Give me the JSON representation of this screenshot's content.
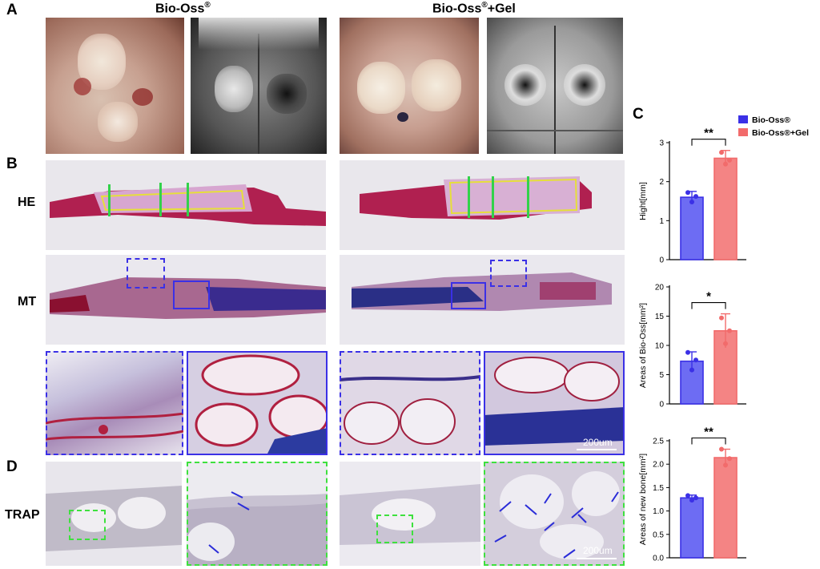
{
  "figure": {
    "panel_labels": {
      "a": "A",
      "b": "B",
      "c": "C",
      "d": "D"
    },
    "group_titles": {
      "left": "Bio-Oss",
      "left_sup": "®",
      "right_main": "Bio-Oss",
      "right_sup": "®",
      "right_suffix": "+Gel"
    },
    "row_labels": {
      "he": "HE",
      "mt": "MT",
      "trap": "TRAP"
    },
    "scale_bar_text": "200um",
    "colors": {
      "bio_oss": "#3b30e6",
      "bio_oss_gel": "#f26b6b",
      "bio_oss_fill": "#6d6cf3",
      "gel_fill": "#f48484",
      "zoom_blue": "#3b30e6",
      "zoom_green": "#3ee03e",
      "measure_green": "#32d24a",
      "outline_yellow": "#e6df3a"
    }
  },
  "chart_data": [
    {
      "type": "bar",
      "categories": [
        "Bio-Oss®",
        "Bio-Oss®+Gel"
      ],
      "values": [
        1.6,
        2.6
      ],
      "errors": [
        0.15,
        0.2
      ],
      "points": [
        [
          1.72,
          1.62,
          1.48
        ],
        [
          2.75,
          2.55,
          2.45
        ]
      ],
      "ylabel": "Hight[mm]",
      "ylim": [
        0,
        3
      ],
      "yticks": [
        0,
        1,
        2,
        3
      ],
      "significance": "**",
      "legend": [
        {
          "label": "Bio-Oss®",
          "color": "#3b30e6"
        },
        {
          "label": "Bio-Oss®+Gel",
          "color": "#f26b6b"
        }
      ]
    },
    {
      "type": "bar",
      "categories": [
        "Bio-Oss®",
        "Bio-Oss®+Gel"
      ],
      "values": [
        7.3,
        12.5
      ],
      "errors": [
        1.6,
        2.9
      ],
      "points": [
        [
          8.8,
          7.5,
          5.8
        ],
        [
          14.7,
          12.5,
          10.3
        ]
      ],
      "ylabel": "Areas of Bio-Oss[mm²]",
      "ylim": [
        0,
        20
      ],
      "yticks": [
        0,
        5,
        10,
        15,
        20
      ],
      "significance": "*"
    },
    {
      "type": "bar",
      "categories": [
        "Bio-Oss®",
        "Bio-Oss®+Gel"
      ],
      "values": [
        1.28,
        2.14
      ],
      "errors": [
        0.06,
        0.18
      ],
      "points": [
        [
          1.33,
          1.28,
          1.23
        ],
        [
          2.32,
          2.12,
          1.98
        ]
      ],
      "ylabel": "Areas of new bone[mm²]",
      "ylim": [
        0,
        2.5
      ],
      "yticks": [
        0.0,
        0.5,
        1.0,
        1.5,
        2.0,
        2.5
      ],
      "significance": "**"
    }
  ]
}
